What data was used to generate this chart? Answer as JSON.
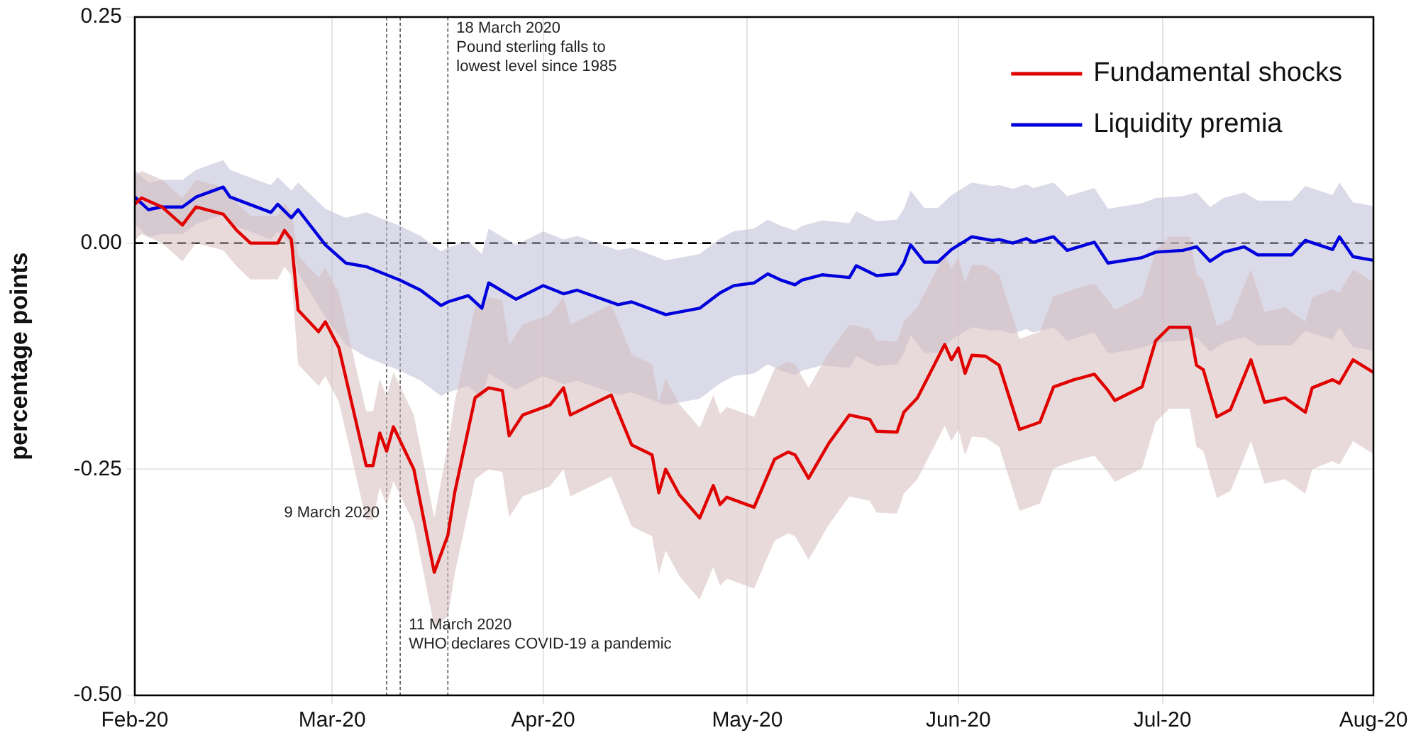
{
  "chart_data": {
    "type": "line",
    "ylabel": "percentage points",
    "xlim": [
      "2020-02-01",
      "2020-08-01"
    ],
    "xticks": [
      {
        "value": "2020-02-01",
        "label": "Feb-20"
      },
      {
        "value": "2020-03-01",
        "label": "Mar-20"
      },
      {
        "value": "2020-04-01",
        "label": "Apr-20"
      },
      {
        "value": "2020-05-01",
        "label": "May-20"
      },
      {
        "value": "2020-06-01",
        "label": "Jun-20"
      },
      {
        "value": "2020-07-01",
        "label": "Jul-20"
      },
      {
        "value": "2020-08-01",
        "label": "Aug-20"
      }
    ],
    "ylim": [
      -0.5,
      0.25
    ],
    "yticks": [
      {
        "value": -0.5,
        "label": "-0.50"
      },
      -0.25,
      {
        "value": 0,
        "label": "0.00"
      },
      0.25
    ],
    "grid": true,
    "legend": "top right",
    "series": [
      {
        "name": "Fundamental shocks",
        "color": "#e00000",
        "x": [
          "2020-02-01",
          "2020-02-02",
          "2020-02-05",
          "2020-02-08",
          "2020-02-10",
          "2020-02-14",
          "2020-02-16",
          "2020-02-18",
          "2020-02-22",
          "2020-02-23",
          "2020-02-24",
          "2020-02-25",
          "2020-02-28",
          "2020-02-29",
          "2020-03-02",
          "2020-03-06",
          "2020-03-07",
          "2020-03-08",
          "2020-03-09",
          "2020-03-10",
          "2020-03-13",
          "2020-03-16",
          "2020-03-18",
          "2020-03-19",
          "2020-03-22",
          "2020-03-24",
          "2020-03-26",
          "2020-03-27",
          "2020-03-29",
          "2020-04-02",
          "2020-04-04",
          "2020-04-05",
          "2020-04-11",
          "2020-04-14",
          "2020-04-17",
          "2020-04-18",
          "2020-04-19",
          "2020-04-21",
          "2020-04-24",
          "2020-04-26",
          "2020-04-27",
          "2020-04-28",
          "2020-05-02",
          "2020-05-05",
          "2020-05-07",
          "2020-05-08",
          "2020-05-10",
          "2020-05-13",
          "2020-05-16",
          "2020-05-19",
          "2020-05-20",
          "2020-05-23",
          "2020-05-24",
          "2020-05-26",
          "2020-05-30",
          "2020-05-31",
          "2020-06-01",
          "2020-06-02",
          "2020-06-03",
          "2020-06-05",
          "2020-06-07",
          "2020-06-10",
          "2020-06-13",
          "2020-06-15",
          "2020-06-18",
          "2020-06-21",
          "2020-06-23",
          "2020-06-24",
          "2020-06-28",
          "2020-06-30",
          "2020-07-02",
          "2020-07-05",
          "2020-07-06",
          "2020-07-07",
          "2020-07-09",
          "2020-07-11",
          "2020-07-14",
          "2020-07-16",
          "2020-07-19",
          "2020-07-22",
          "2020-07-23",
          "2020-07-26",
          "2020-07-27",
          "2020-07-29",
          "2020-08-01"
        ],
        "values": [
          0.043,
          0.05,
          0.04,
          0.02,
          0.04,
          0.032,
          0.014,
          0,
          0,
          0.014,
          0.004,
          -0.074,
          -0.098,
          -0.087,
          -0.116,
          -0.246,
          -0.246,
          -0.21,
          -0.23,
          -0.203,
          -0.25,
          -0.364,
          -0.323,
          -0.276,
          -0.171,
          -0.16,
          -0.163,
          -0.213,
          -0.19,
          -0.179,
          -0.16,
          -0.19,
          -0.168,
          -0.223,
          -0.234,
          -0.276,
          -0.25,
          -0.278,
          -0.304,
          -0.268,
          -0.289,
          -0.281,
          -0.292,
          -0.239,
          -0.231,
          -0.234,
          -0.26,
          -0.221,
          -0.19,
          -0.195,
          -0.208,
          -0.209,
          -0.187,
          -0.171,
          -0.112,
          -0.129,
          -0.116,
          -0.144,
          -0.124,
          -0.125,
          -0.135,
          -0.206,
          -0.198,
          -0.159,
          -0.151,
          -0.145,
          -0.163,
          -0.174,
          -0.159,
          -0.108,
          -0.093,
          -0.093,
          -0.135,
          -0.14,
          -0.192,
          -0.184,
          -0.129,
          -0.176,
          -0.171,
          -0.187,
          -0.16,
          -0.151,
          -0.155,
          -0.129,
          -0.143
        ],
        "lower": [
          0.003,
          0.01,
          0,
          -0.02,
          0,
          -0.008,
          -0.026,
          -0.04,
          -0.04,
          -0.026,
          -0.036,
          -0.134,
          -0.158,
          -0.147,
          -0.176,
          -0.306,
          -0.306,
          -0.27,
          -0.29,
          -0.263,
          -0.31,
          -0.424,
          -0.413,
          -0.366,
          -0.261,
          -0.25,
          -0.253,
          -0.303,
          -0.28,
          -0.269,
          -0.25,
          -0.28,
          -0.258,
          -0.313,
          -0.324,
          -0.366,
          -0.34,
          -0.368,
          -0.394,
          -0.358,
          -0.379,
          -0.371,
          -0.382,
          -0.329,
          -0.321,
          -0.324,
          -0.35,
          -0.311,
          -0.28,
          -0.285,
          -0.298,
          -0.299,
          -0.277,
          -0.261,
          -0.202,
          -0.219,
          -0.206,
          -0.234,
          -0.214,
          -0.215,
          -0.225,
          -0.296,
          -0.288,
          -0.249,
          -0.241,
          -0.235,
          -0.253,
          -0.264,
          -0.249,
          -0.198,
          -0.183,
          -0.183,
          -0.225,
          -0.23,
          -0.282,
          -0.274,
          -0.219,
          -0.266,
          -0.261,
          -0.277,
          -0.25,
          -0.241,
          -0.245,
          -0.219,
          -0.233
        ],
        "upper": [
          0.073,
          0.08,
          0.07,
          0.05,
          0.07,
          0.062,
          0.044,
          0.03,
          0.03,
          0.044,
          0.034,
          -0.014,
          -0.038,
          -0.027,
          -0.056,
          -0.186,
          -0.186,
          -0.15,
          -0.17,
          -0.143,
          -0.19,
          -0.304,
          -0.223,
          -0.176,
          -0.071,
          -0.06,
          -0.063,
          -0.113,
          -0.09,
          -0.079,
          -0.06,
          -0.09,
          -0.068,
          -0.123,
          -0.134,
          -0.176,
          -0.15,
          -0.178,
          -0.204,
          -0.168,
          -0.189,
          -0.181,
          -0.192,
          -0.139,
          -0.131,
          -0.134,
          -0.16,
          -0.121,
          -0.09,
          -0.095,
          -0.108,
          -0.109,
          -0.087,
          -0.071,
          -0.012,
          -0.029,
          -0.016,
          -0.044,
          -0.024,
          -0.025,
          -0.035,
          -0.106,
          -0.098,
          -0.059,
          -0.051,
          -0.045,
          -0.063,
          -0.074,
          -0.059,
          -0.008,
          0.007,
          0.007,
          -0.035,
          -0.04,
          -0.092,
          -0.084,
          -0.029,
          -0.076,
          -0.071,
          -0.087,
          -0.06,
          -0.051,
          -0.055,
          -0.029,
          -0.043
        ]
      },
      {
        "name": "Liquidity premia",
        "color": "#0000dd",
        "x": [
          "2020-02-01",
          "2020-02-03",
          "2020-02-05",
          "2020-02-08",
          "2020-02-10",
          "2020-02-14",
          "2020-02-15",
          "2020-02-21",
          "2020-02-22",
          "2020-02-24",
          "2020-02-25",
          "2020-02-29",
          "2020-03-03",
          "2020-03-06",
          "2020-03-11",
          "2020-03-14",
          "2020-03-17",
          "2020-03-18",
          "2020-03-21",
          "2020-03-23",
          "2020-03-24",
          "2020-03-28",
          "2020-04-01",
          "2020-04-04",
          "2020-04-06",
          "2020-04-12",
          "2020-04-14",
          "2020-04-19",
          "2020-04-24",
          "2020-04-27",
          "2020-04-29",
          "2020-05-02",
          "2020-05-04",
          "2020-05-06",
          "2020-05-08",
          "2020-05-09",
          "2020-05-12",
          "2020-05-16",
          "2020-05-17",
          "2020-05-20",
          "2020-05-23",
          "2020-05-24",
          "2020-05-25",
          "2020-05-27",
          "2020-05-29",
          "2020-05-31",
          "2020-06-03",
          "2020-06-06",
          "2020-06-07",
          "2020-06-09",
          "2020-06-11",
          "2020-06-12",
          "2020-06-15",
          "2020-06-17",
          "2020-06-21",
          "2020-06-23",
          "2020-06-28",
          "2020-06-30",
          "2020-07-04",
          "2020-07-06",
          "2020-07-08",
          "2020-07-10",
          "2020-07-13",
          "2020-07-15",
          "2020-07-20",
          "2020-07-22",
          "2020-07-26",
          "2020-07-27",
          "2020-07-29",
          "2020-08-01"
        ],
        "values": [
          0.051,
          0.037,
          0.04,
          0.04,
          0.051,
          0.062,
          0.051,
          0.034,
          0.043,
          0.028,
          0.037,
          -0.002,
          -0.022,
          -0.026,
          -0.041,
          -0.052,
          -0.069,
          -0.065,
          -0.058,
          -0.072,
          -0.044,
          -0.062,
          -0.047,
          -0.056,
          -0.052,
          -0.068,
          -0.065,
          -0.079,
          -0.072,
          -0.055,
          -0.047,
          -0.044,
          -0.034,
          -0.041,
          -0.046,
          -0.041,
          -0.035,
          -0.038,
          -0.025,
          -0.036,
          -0.034,
          -0.022,
          -0.002,
          -0.021,
          -0.021,
          -0.007,
          0.007,
          0.003,
          0.004,
          0,
          0.005,
          0.001,
          0.007,
          -0.008,
          0.001,
          -0.022,
          -0.016,
          -0.01,
          -0.008,
          -0.004,
          -0.02,
          -0.01,
          -0.004,
          -0.013,
          -0.013,
          0.003,
          -0.007,
          0.007,
          -0.015,
          -0.019
        ],
        "lower": [
          0.021,
          0.007,
          0.01,
          0.01,
          0.021,
          0.032,
          0.021,
          0.004,
          0.013,
          -0.002,
          -0.033,
          -0.082,
          -0.112,
          -0.126,
          -0.141,
          -0.152,
          -0.169,
          -0.165,
          -0.158,
          -0.172,
          -0.144,
          -0.162,
          -0.147,
          -0.156,
          -0.152,
          -0.168,
          -0.165,
          -0.179,
          -0.172,
          -0.155,
          -0.147,
          -0.144,
          -0.134,
          -0.141,
          -0.146,
          -0.141,
          -0.135,
          -0.138,
          -0.125,
          -0.136,
          -0.134,
          -0.122,
          -0.102,
          -0.121,
          -0.121,
          -0.107,
          -0.093,
          -0.097,
          -0.096,
          -0.1,
          -0.095,
          -0.099,
          -0.093,
          -0.108,
          -0.099,
          -0.122,
          -0.116,
          -0.11,
          -0.108,
          -0.104,
          -0.12,
          -0.11,
          -0.104,
          -0.113,
          -0.113,
          -0.097,
          -0.107,
          -0.093,
          -0.115,
          -0.119
        ],
        "upper": [
          0.081,
          0.067,
          0.07,
          0.07,
          0.081,
          0.092,
          0.081,
          0.064,
          0.073,
          0.058,
          0.067,
          0.038,
          0.028,
          0.034,
          0.019,
          0.008,
          -0.009,
          -0.005,
          0.002,
          -0.012,
          0.016,
          -0.002,
          0.013,
          0.004,
          0.008,
          -0.008,
          -0.005,
          -0.019,
          -0.012,
          0.005,
          0.013,
          0.016,
          0.026,
          0.019,
          0.014,
          0.019,
          0.025,
          0.022,
          0.035,
          0.024,
          0.026,
          0.038,
          0.058,
          0.039,
          0.039,
          0.053,
          0.067,
          0.063,
          0.064,
          0.06,
          0.065,
          0.061,
          0.067,
          0.052,
          0.061,
          0.038,
          0.044,
          0.05,
          0.052,
          0.056,
          0.04,
          0.05,
          0.056,
          0.047,
          0.047,
          0.063,
          0.053,
          0.067,
          0.045,
          0.041
        ]
      }
    ],
    "ref_lines": [
      {
        "axis": "y",
        "value": 0,
        "color": "#000000",
        "line_style": "dashed"
      },
      {
        "axis": "x",
        "value": "2020-03-09",
        "label": "9 March 2020",
        "color": "#555555",
        "line_style": "dashed"
      },
      {
        "axis": "x",
        "value": "2020-03-11",
        "label": "11 March 2020\nWHO declares COVID-19 a pandemic",
        "color": "#555555",
        "line_style": "dashed"
      },
      {
        "axis": "x",
        "value": "2020-03-18",
        "label": "18 March 2020\nPound sterling falls to\nlowest level since 1985",
        "color": "#555555",
        "line_style": "dashed"
      }
    ]
  }
}
